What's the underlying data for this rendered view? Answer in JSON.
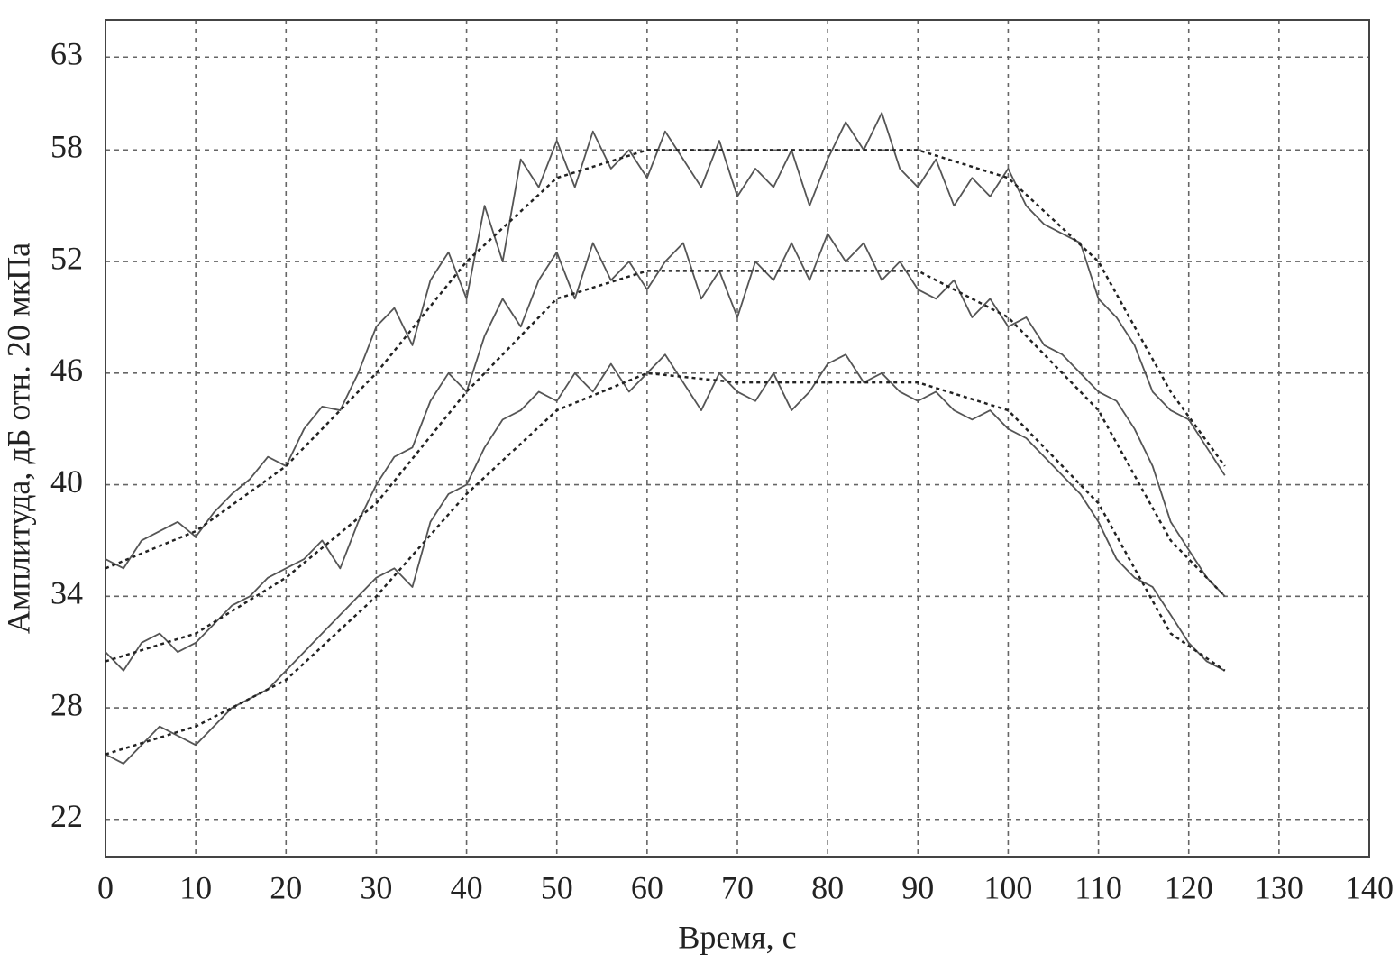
{
  "chart_data": {
    "type": "line",
    "x_label": "Время, с",
    "y_label": "Амплитуда, дБ отн. 20 мкПа",
    "xlim": [
      0,
      140
    ],
    "xticks": [
      0,
      10,
      20,
      30,
      40,
      50,
      60,
      70,
      80,
      90,
      100,
      110,
      120,
      130,
      140
    ],
    "ylim": [
      20,
      65
    ],
    "yticks": [
      22,
      28,
      34,
      40,
      46,
      52,
      58,
      63
    ],
    "grid": true,
    "x": [
      0,
      2,
      4,
      6,
      8,
      10,
      12,
      14,
      16,
      18,
      20,
      22,
      24,
      26,
      28,
      30,
      32,
      34,
      36,
      38,
      40,
      42,
      44,
      46,
      48,
      50,
      52,
      54,
      56,
      58,
      60,
      62,
      64,
      66,
      68,
      70,
      72,
      74,
      76,
      78,
      80,
      82,
      84,
      86,
      88,
      90,
      92,
      94,
      96,
      98,
      100,
      102,
      104,
      106,
      108,
      110,
      112,
      114,
      116,
      118,
      120,
      122,
      124
    ],
    "series": [
      {
        "color": "#555555",
        "values": [
          36,
          35.5,
          37,
          37.5,
          38,
          37.2,
          38.5,
          39.5,
          40.3,
          41.5,
          41,
          43,
          44.2,
          44,
          46,
          48.5,
          49.5,
          47.5,
          51,
          52.5,
          50,
          55,
          52,
          57.5,
          56,
          58.5,
          56,
          59,
          57,
          58,
          56.5,
          59,
          57.5,
          56,
          58.5,
          55.5,
          57,
          56,
          58,
          55,
          57.5,
          59.5,
          58,
          60,
          57,
          56,
          57.5,
          55,
          56.5,
          55.5,
          57,
          55,
          54,
          53.5,
          53,
          50,
          49,
          47.5,
          45,
          44,
          43.5,
          42,
          40.5
        ]
      },
      {
        "color": "#555555",
        "values": [
          31,
          30,
          31.5,
          32,
          31,
          31.5,
          32.5,
          33.5,
          34,
          35,
          35.5,
          36,
          37,
          35.5,
          38,
          40,
          41.5,
          42,
          44.5,
          46,
          45,
          48,
          50,
          48.5,
          51,
          52.5,
          50,
          53,
          51,
          52,
          50.5,
          52,
          53,
          50,
          51.5,
          49,
          52,
          51,
          53,
          51,
          53.5,
          52,
          53,
          51,
          52,
          50.5,
          50,
          51,
          49,
          50,
          48.5,
          49,
          47.5,
          47,
          46,
          45,
          44.5,
          43,
          41,
          38,
          36.5,
          35,
          34
        ]
      },
      {
        "color": "#555555",
        "values": [
          25.5,
          25,
          26,
          27,
          26.5,
          26,
          27,
          28,
          28.5,
          29,
          30,
          31,
          32,
          33,
          34,
          35,
          35.5,
          34.5,
          38,
          39.5,
          40,
          42,
          43.5,
          44,
          45,
          44.5,
          46,
          45,
          46.5,
          45,
          46,
          47,
          45.5,
          44,
          46,
          45,
          44.5,
          46,
          44,
          45,
          46.5,
          47,
          45.5,
          46,
          45,
          44.5,
          45,
          44,
          43.5,
          44,
          43,
          42.5,
          41.5,
          40.5,
          39.5,
          38,
          36,
          35,
          34.5,
          33,
          31.5,
          30.5,
          30
        ]
      },
      {
        "color": "#222222",
        "dashed": true,
        "x": [
          0,
          10,
          20,
          30,
          40,
          50,
          60,
          70,
          80,
          90,
          100,
          110,
          118,
          124
        ],
        "values": [
          35.5,
          37.5,
          41,
          46,
          52,
          56.5,
          58,
          58,
          58,
          58,
          56.5,
          52,
          45,
          41
        ]
      },
      {
        "color": "#222222",
        "dashed": true,
        "x": [
          0,
          10,
          20,
          30,
          40,
          50,
          60,
          70,
          80,
          90,
          100,
          110,
          118,
          124
        ],
        "values": [
          30.5,
          32,
          35,
          39,
          45,
          50,
          51.5,
          51.5,
          51.5,
          51.5,
          49,
          44,
          37,
          34
        ]
      },
      {
        "color": "#222222",
        "dashed": true,
        "x": [
          0,
          10,
          20,
          30,
          40,
          50,
          60,
          70,
          80,
          90,
          100,
          110,
          118,
          124
        ],
        "values": [
          25.5,
          27,
          29.5,
          34,
          39.5,
          44,
          46,
          45.5,
          45.5,
          45.5,
          44,
          39,
          32,
          30
        ]
      }
    ]
  }
}
